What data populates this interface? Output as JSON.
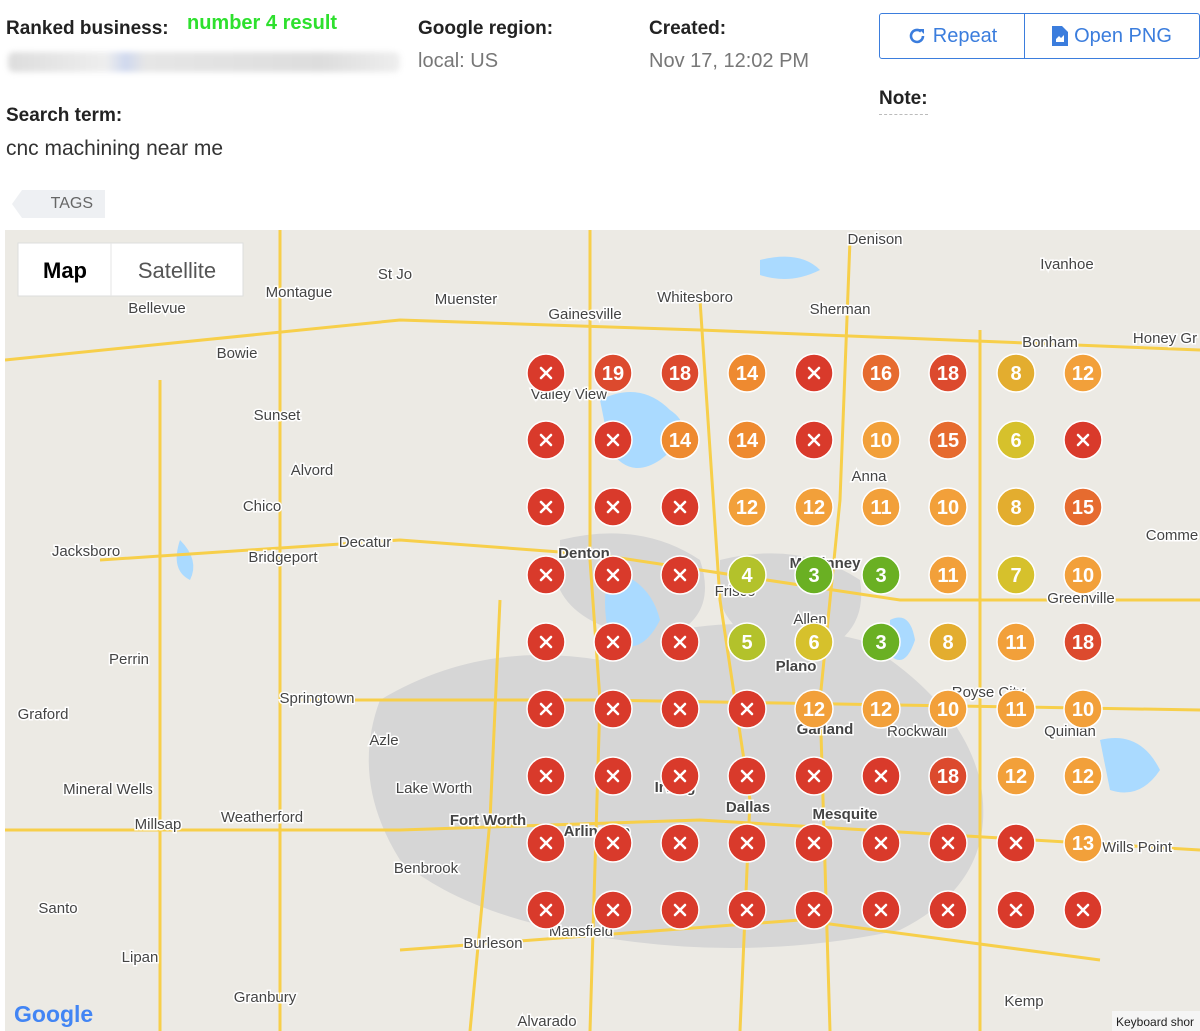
{
  "header": {
    "ranked_business_label": "Ranked business:",
    "ranked_business_result": "number 4 result",
    "region_label": "Google region:",
    "region_value": "local: US",
    "created_label": "Created:",
    "created_value": "Nov 17, 12:02 PM",
    "search_term_label": "Search term:",
    "search_term_value": "cnc machining near me",
    "note_label": "Note:",
    "repeat_button": "Repeat",
    "open_png_button": "Open PNG",
    "tags": "TAGS"
  },
  "map": {
    "map_button": "Map",
    "satellite_button": "Satellite",
    "logo": "Google",
    "keyboard": "Keyboard shor",
    "places": [
      "Denison",
      "Ivanhoe",
      "St Jo",
      "Montague",
      "Muenster",
      "Whitesboro",
      "Sherman",
      "Gainesville",
      "Bellevue",
      "Bonham",
      "Honey Gr",
      "Bowie",
      "Valley View",
      "Sunset",
      "Alvord",
      "Anna",
      "Chico",
      "Jacksboro",
      "Bridgeport",
      "Decatur",
      "Denton",
      "McKinney",
      "Frisco",
      "Comme",
      "Greenville",
      "Allen",
      "Perrin",
      "Plano",
      "Springtown",
      "Graford",
      "Royse City",
      "Azle",
      "Garland",
      "Rockwall",
      "Quinlan",
      "Mineral Wells",
      "Lake Worth",
      "Irving",
      "Dallas",
      "Mesquite",
      "Weatherford",
      "Millsap",
      "Fort Worth",
      "Arlington",
      "Wills Point",
      "Benbrook",
      "Santo",
      "Mansfield",
      "Burleson",
      "Lipan",
      "Granbury",
      "Kemp",
      "Alvarado"
    ],
    "grid": {
      "rows": [
        [
          null,
          19,
          18,
          14,
          null,
          16,
          18,
          8,
          12
        ],
        [
          null,
          null,
          14,
          14,
          null,
          10,
          15,
          6,
          null
        ],
        [
          null,
          null,
          null,
          12,
          12,
          11,
          10,
          8,
          15
        ],
        [
          null,
          null,
          null,
          4,
          3,
          3,
          11,
          7,
          10
        ],
        [
          null,
          null,
          null,
          5,
          6,
          3,
          8,
          11,
          18
        ],
        [
          null,
          null,
          null,
          null,
          12,
          12,
          10,
          11,
          10
        ],
        [
          null,
          null,
          null,
          null,
          null,
          null,
          18,
          12,
          12
        ],
        [
          null,
          null,
          null,
          null,
          null,
          null,
          null,
          null,
          13
        ],
        [
          null,
          null,
          null,
          null,
          null,
          null,
          null,
          null,
          null
        ]
      ]
    }
  }
}
